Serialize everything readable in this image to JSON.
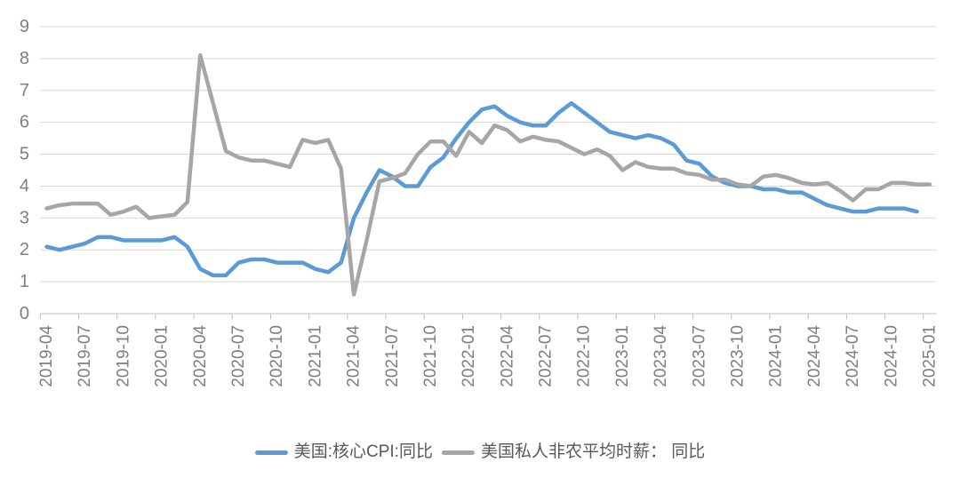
{
  "chart_data": {
    "type": "line",
    "title": "",
    "xlabel": "",
    "ylabel": "",
    "ylim": [
      0,
      9
    ],
    "y_tick_step": 1,
    "y_ticks": [
      0,
      1,
      2,
      3,
      4,
      5,
      6,
      7,
      8,
      9
    ],
    "grid": "horizontal",
    "legend_position": "bottom",
    "x_label_rotation": -90,
    "x_tick_interval": 3,
    "x_tick_labels": [
      "2019-04",
      "2019-07",
      "2019-10",
      "2020-01",
      "2020-04",
      "2020-07",
      "2020-10",
      "2021-01",
      "2021-04",
      "2021-07",
      "2021-10",
      "2022-01",
      "2022-04",
      "2022-07",
      "2022-10",
      "2023-01",
      "2023-04",
      "2023-07",
      "2023-10",
      "2024-01",
      "2024-04",
      "2024-07",
      "2024-10",
      "2025-01"
    ],
    "categories": [
      "2019-04",
      "2019-05",
      "2019-06",
      "2019-07",
      "2019-08",
      "2019-09",
      "2019-10",
      "2019-11",
      "2019-12",
      "2020-01",
      "2020-02",
      "2020-03",
      "2020-04",
      "2020-05",
      "2020-06",
      "2020-07",
      "2020-08",
      "2020-09",
      "2020-10",
      "2020-11",
      "2020-12",
      "2021-01",
      "2021-02",
      "2021-03",
      "2021-04",
      "2021-05",
      "2021-06",
      "2021-07",
      "2021-08",
      "2021-09",
      "2021-10",
      "2021-11",
      "2021-12",
      "2022-01",
      "2022-02",
      "2022-03",
      "2022-04",
      "2022-05",
      "2022-06",
      "2022-07",
      "2022-08",
      "2022-09",
      "2022-10",
      "2022-11",
      "2022-12",
      "2023-01",
      "2023-02",
      "2023-03",
      "2023-04",
      "2023-05",
      "2023-06",
      "2023-07",
      "2023-08",
      "2023-09",
      "2023-10",
      "2023-11",
      "2023-12",
      "2024-01",
      "2024-02",
      "2024-03",
      "2024-04",
      "2024-05",
      "2024-06",
      "2024-07",
      "2024-08",
      "2024-09",
      "2024-10",
      "2024-11",
      "2024-12",
      "2025-01"
    ],
    "series": [
      {
        "name": "美国:核心CPI:同比",
        "color": "#5B9BD5",
        "values": [
          2.1,
          2.0,
          2.1,
          2.2,
          2.4,
          2.4,
          2.3,
          2.3,
          2.3,
          2.3,
          2.4,
          2.1,
          1.4,
          1.2,
          1.2,
          1.6,
          1.7,
          1.7,
          1.6,
          1.6,
          1.6,
          1.4,
          1.3,
          1.6,
          3.0,
          3.8,
          4.5,
          4.3,
          4.0,
          4.0,
          4.6,
          4.9,
          5.5,
          6.0,
          6.4,
          6.5,
          6.2,
          6.0,
          5.9,
          5.9,
          6.3,
          6.6,
          6.3,
          6.0,
          5.7,
          5.6,
          5.5,
          5.6,
          5.5,
          5.3,
          4.8,
          4.7,
          4.3,
          4.1,
          4.0,
          4.0,
          3.9,
          3.9,
          3.8,
          3.8,
          3.6,
          3.4,
          3.3,
          3.2,
          3.2,
          3.3,
          3.3,
          3.3,
          3.2,
          null
        ]
      },
      {
        "name": "美国私人非农平均时薪： 同比",
        "color": "#A6A6A6",
        "values": [
          3.3,
          3.4,
          3.45,
          3.45,
          3.45,
          3.1,
          3.2,
          3.35,
          3.0,
          3.05,
          3.1,
          3.5,
          8.1,
          6.6,
          5.1,
          4.9,
          4.8,
          4.8,
          4.7,
          4.6,
          5.45,
          5.35,
          5.45,
          4.55,
          0.6,
          2.3,
          4.15,
          4.25,
          4.4,
          5.0,
          5.4,
          5.4,
          4.95,
          5.7,
          5.35,
          5.9,
          5.75,
          5.4,
          5.55,
          5.45,
          5.4,
          5.2,
          5.0,
          5.15,
          4.95,
          4.5,
          4.75,
          4.6,
          4.55,
          4.55,
          4.4,
          4.35,
          4.2,
          4.2,
          4.05,
          4.0,
          4.3,
          4.35,
          4.25,
          4.1,
          4.05,
          4.1,
          3.85,
          3.55,
          3.9,
          3.9,
          4.1,
          4.1,
          4.05,
          4.05
        ]
      }
    ],
    "style": {
      "line_width": 4.5,
      "gridline_color": "#D9D9D9",
      "axis_line_color": "#BFBFBF",
      "axis_text_color": "#7F7F7F",
      "legend_text_color": "#595959",
      "background": "#FFFFFF"
    }
  },
  "legend": {
    "item1_label": "美国:核心CPI:同比",
    "item2_label": "美国私人非农平均时薪： 同比"
  }
}
